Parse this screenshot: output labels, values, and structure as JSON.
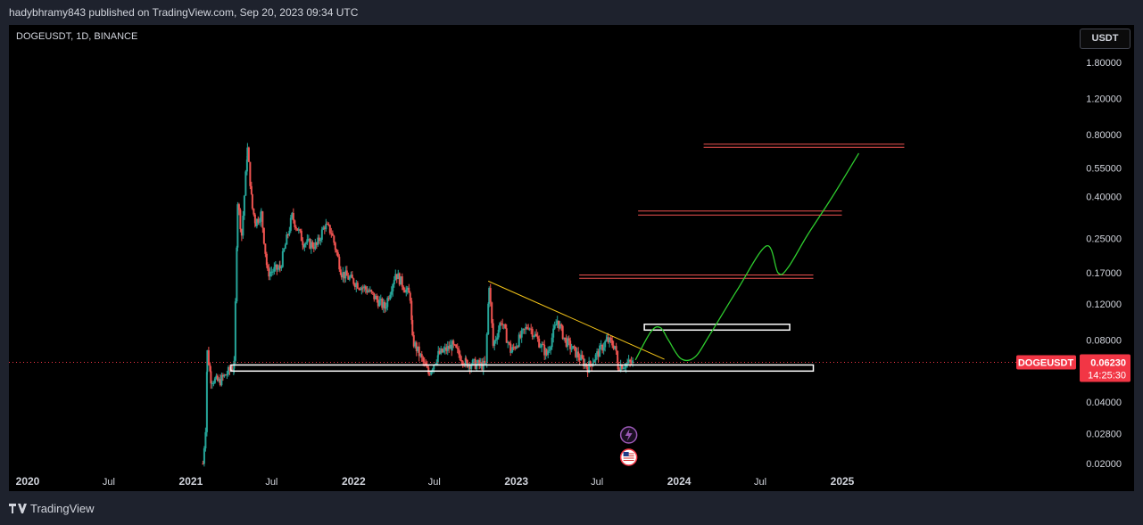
{
  "header": {
    "published_text": "hadybhramy843 published on TradingView.com, Sep 20, 2023 09:34 UTC"
  },
  "symbol": {
    "label": "DOGEUSDT, 1D, BINANCE"
  },
  "currency_button": {
    "label": "USDT"
  },
  "footer": {
    "brand": "TradingView"
  },
  "colors": {
    "background": "#000000",
    "frame": "#1e222d",
    "up_candle": "#26a69a",
    "down_candle": "#ef5350",
    "trendline": "#f5c518",
    "resistance": "#ef5350",
    "projection": "#2ecc2e",
    "zone": "#ffffff",
    "price_marker": "#f23645"
  },
  "chart_data": {
    "type": "candlestick",
    "title": "DOGEUSDT, 1D, BINANCE",
    "scale": "log",
    "ylim": [
      0.0185,
      2.2
    ],
    "y_ticks": [
      "1.80000",
      "1.20000",
      "0.80000",
      "0.55000",
      "0.40000",
      "0.25000",
      "0.17000",
      "0.12000",
      "0.08000",
      "0.04000",
      "0.02800",
      "0.02000"
    ],
    "x_ticks": [
      "2020",
      "Jul",
      "2021",
      "Jul",
      "2022",
      "Jul",
      "2023",
      "Jul",
      "2024",
      "Jul",
      "2025"
    ],
    "x_tick_dates": [
      "2020-01-01",
      "2020-07-01",
      "2021-01-01",
      "2021-07-01",
      "2022-01-01",
      "2022-07-01",
      "2023-01-01",
      "2023-07-01",
      "2024-01-01",
      "2024-07-01",
      "2025-01-01"
    ],
    "grid": false,
    "price_path": [
      [
        "2021-01-28",
        0.02
      ],
      [
        "2021-02-03",
        0.03
      ],
      [
        "2021-02-07",
        0.07
      ],
      [
        "2021-02-15",
        0.052
      ],
      [
        "2021-03-05",
        0.05
      ],
      [
        "2021-04-08",
        0.06
      ],
      [
        "2021-04-16",
        0.38
      ],
      [
        "2021-04-25",
        0.26
      ],
      [
        "2021-05-08",
        0.68
      ],
      [
        "2021-05-19",
        0.35
      ],
      [
        "2021-05-26",
        0.3
      ],
      [
        "2021-06-08",
        0.33
      ],
      [
        "2021-06-22",
        0.17
      ],
      [
        "2021-07-20",
        0.18
      ],
      [
        "2021-08-16",
        0.32
      ],
      [
        "2021-09-10",
        0.24
      ],
      [
        "2021-10-10",
        0.23
      ],
      [
        "2021-10-28",
        0.29
      ],
      [
        "2021-11-12",
        0.27
      ],
      [
        "2021-12-05",
        0.17
      ],
      [
        "2022-01-10",
        0.15
      ],
      [
        "2022-02-01",
        0.14
      ],
      [
        "2022-03-12",
        0.115
      ],
      [
        "2022-04-05",
        0.17
      ],
      [
        "2022-05-08",
        0.13
      ],
      [
        "2022-05-13",
        0.08
      ],
      [
        "2022-06-18",
        0.055
      ],
      [
        "2022-07-10",
        0.068
      ],
      [
        "2022-08-10",
        0.075
      ],
      [
        "2022-09-10",
        0.062
      ],
      [
        "2022-10-24",
        0.06
      ],
      [
        "2022-11-01",
        0.15
      ],
      [
        "2022-11-10",
        0.075
      ],
      [
        "2022-11-28",
        0.1
      ],
      [
        "2022-12-20",
        0.07
      ],
      [
        "2023-01-28",
        0.095
      ],
      [
        "2023-03-10",
        0.068
      ],
      [
        "2023-04-03",
        0.1
      ],
      [
        "2023-04-20",
        0.08
      ],
      [
        "2023-06-10",
        0.059
      ],
      [
        "2023-07-01",
        0.068
      ],
      [
        "2023-07-23",
        0.08
      ],
      [
        "2023-08-10",
        0.075
      ],
      [
        "2023-08-17",
        0.06
      ],
      [
        "2023-09-20",
        0.0623
      ]
    ],
    "current_price": {
      "symbol_tag": "DOGEUSDT",
      "price": "0.06230",
      "countdown": "14:25:30",
      "value": 0.0623
    },
    "annotations": {
      "support_zone": {
        "from": "2021-04-01",
        "to": "2024-10-28",
        "low": 0.0565,
        "high": 0.0605
      },
      "target_box": {
        "from": "2023-10-15",
        "to": "2024-09-05",
        "low": 0.0895,
        "high": 0.0955
      },
      "trendline": {
        "from": [
          "2022-10-30",
          0.155
        ],
        "to": [
          "2023-11-29",
          0.0645
        ]
      },
      "resistance_levels": [
        {
          "from": "2023-05-22",
          "to": "2024-10-28",
          "low": 0.16,
          "high": 0.166
        },
        {
          "from": "2023-10-01",
          "to": "2024-12-31",
          "low": 0.325,
          "high": 0.34
        },
        {
          "from": "2024-02-25",
          "to": "2025-05-20",
          "low": 0.695,
          "high": 0.72
        }
      ],
      "projection_path": [
        [
          "2023-09-25",
          0.064
        ],
        [
          "2023-10-30",
          0.088
        ],
        [
          "2023-11-20",
          0.092
        ],
        [
          "2023-12-08",
          0.08
        ],
        [
          "2024-01-05",
          0.065
        ],
        [
          "2024-02-05",
          0.066
        ],
        [
          "2024-03-10",
          0.085
        ],
        [
          "2024-05-10",
          0.14
        ],
        [
          "2024-07-15",
          0.23
        ],
        [
          "2024-08-10",
          0.17
        ],
        [
          "2024-09-01",
          0.18
        ],
        [
          "2024-10-15",
          0.26
        ],
        [
          "2024-12-10",
          0.4
        ],
        [
          "2025-02-07",
          0.65
        ]
      ]
    },
    "event_icons": [
      {
        "date": "2023-09-10",
        "icon": "lightning-icon",
        "color": "#9b59b6"
      },
      {
        "date": "2023-09-10",
        "icon": "us-flag-icon",
        "color": "#f23645"
      }
    ]
  }
}
